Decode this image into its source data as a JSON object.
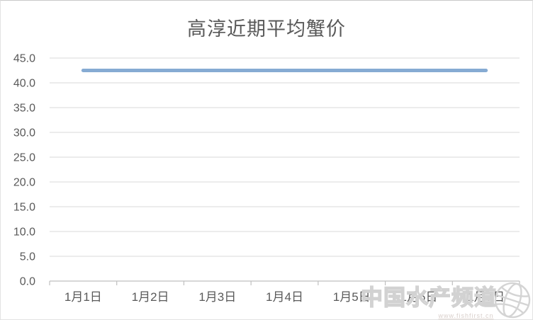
{
  "chart_data": {
    "type": "line",
    "title": "高淳近期平均蟹价",
    "categories": [
      "1月1日",
      "1月2日",
      "1月3日",
      "1月4日",
      "1月5日",
      "1月6日",
      "1月7日"
    ],
    "series": [
      {
        "values": [
          42.5,
          42.5,
          42.5,
          42.5,
          42.5,
          42.5,
          42.5
        ]
      }
    ],
    "xlabel": "",
    "ylabel": "",
    "ylim": [
      0,
      45
    ],
    "ytick_step": 5,
    "yticks": [
      "0.0",
      "5.0",
      "10.0",
      "15.0",
      "20.0",
      "25.0",
      "30.0",
      "35.0",
      "40.0",
      "45.0"
    ],
    "grid": true,
    "legend_position": "none"
  },
  "watermark": {
    "text": "中国水产频道",
    "url": "www.fishfirst.cn",
    "icon": "globe-icon"
  },
  "colors": {
    "line": "#86ABD3",
    "grid": "#D9D9D9",
    "axis": "#BFBFBF",
    "text": "#595959",
    "watermark": "#D2D2D2",
    "background": "#FFFFFF"
  }
}
